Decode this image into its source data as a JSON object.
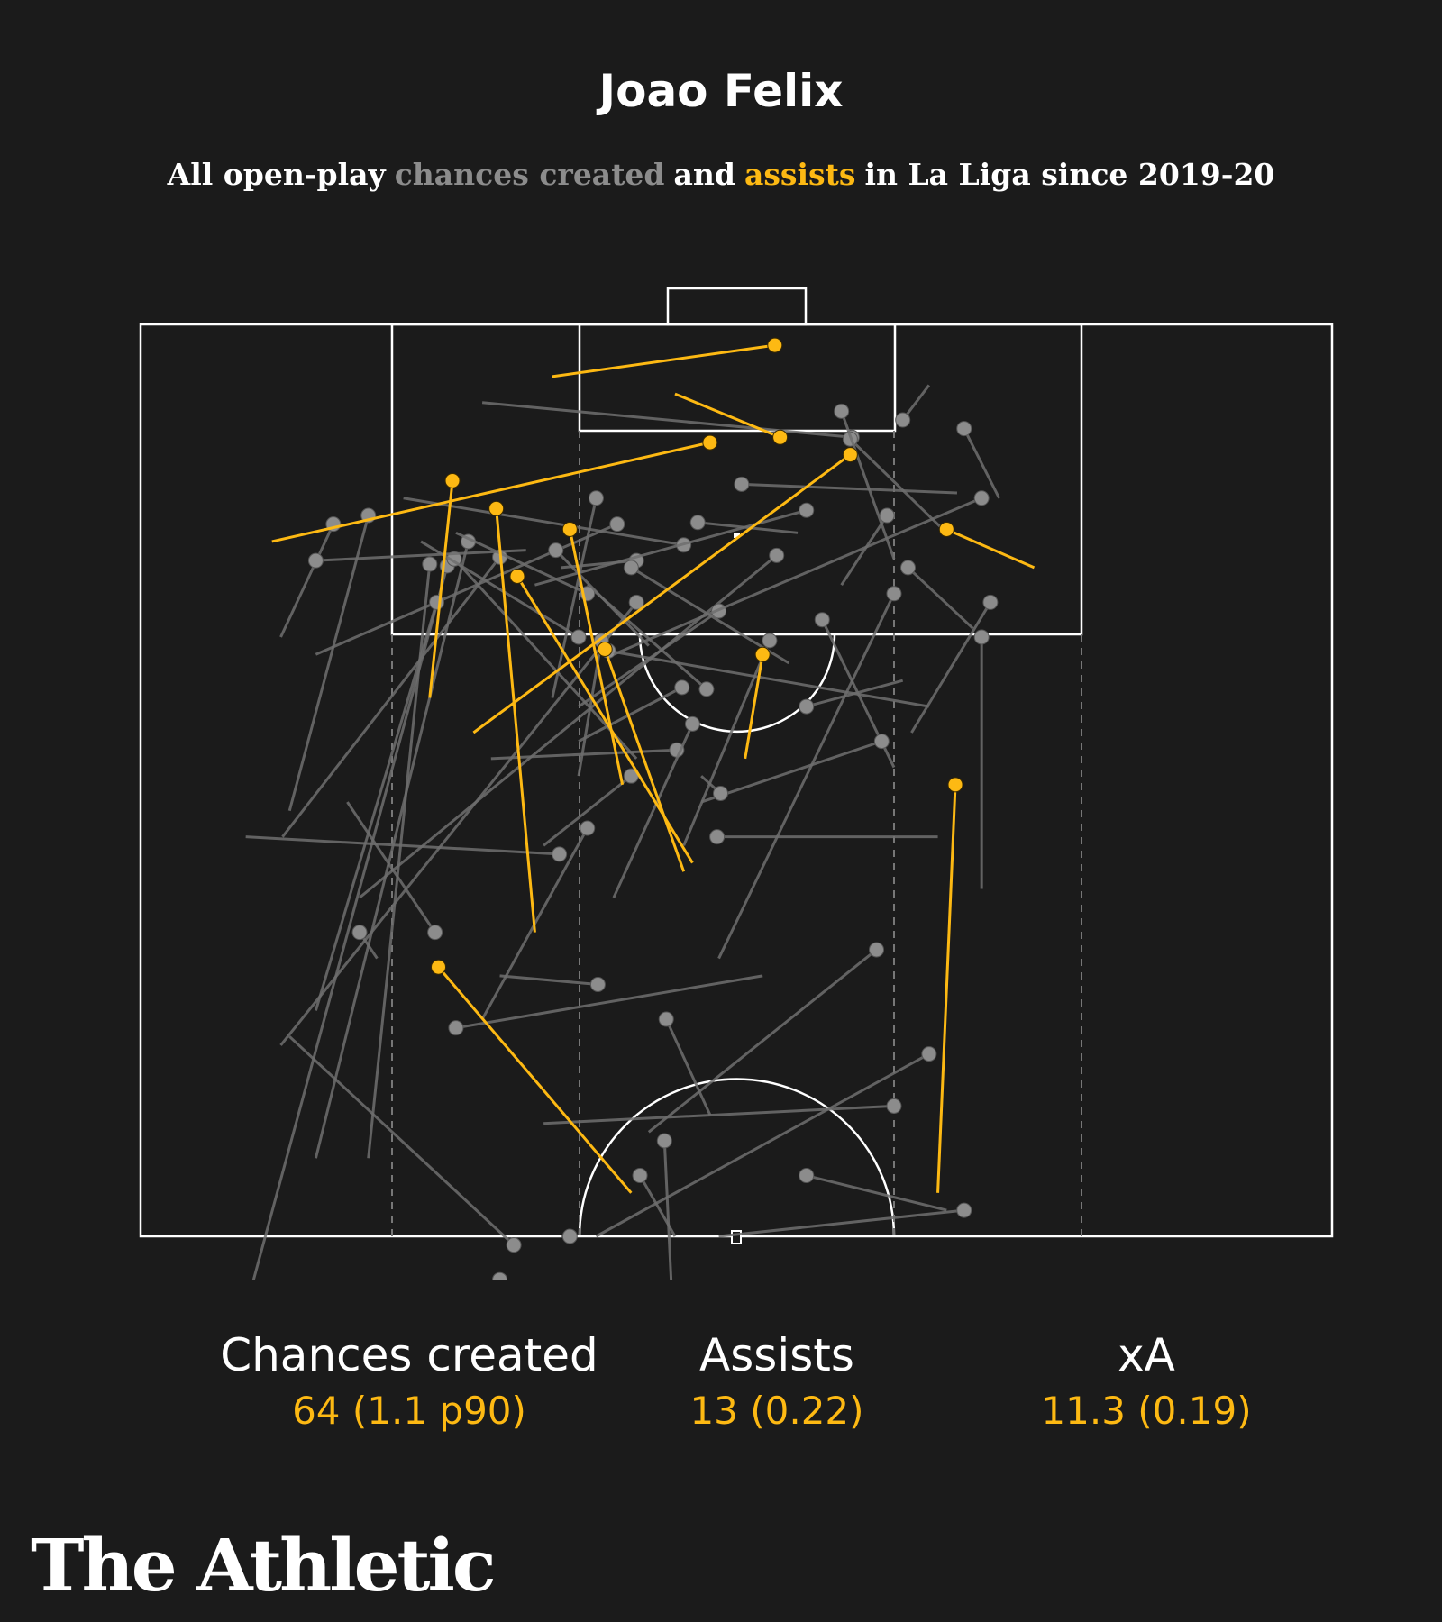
{
  "colors": {
    "background": "#1b1b1b",
    "chance": "#8c8c8c",
    "assist": "#fdb913",
    "pitch_lines": "#ffffff"
  },
  "header": {
    "title": "Joao Felix",
    "subtitle_parts": [
      "All open-play",
      "chances created",
      "and",
      "assists",
      "in La Liga since 2019-20"
    ]
  },
  "stats": [
    {
      "label": "Chances created",
      "value": "64 (1.1 p90)"
    },
    {
      "label": "Assists",
      "value": "13 (0.22)"
    },
    {
      "label": "xA",
      "value": "11.3 (0.19)"
    }
  ],
  "brand": "The Athletic",
  "chart_data": {
    "type": "scatter",
    "description_units": "pitch coordinates in metres: x = across pitch (0-68), y = distance from goal line (0-52.5)",
    "series": [
      {
        "name": "chances created",
        "color": "#8c8c8c",
        "passes": [
          [
            13.0,
            11.0,
            8.5,
            28.0
          ],
          [
            17.5,
            13.9,
            4.7,
            61.5
          ],
          [
            17.9,
            13.5,
            28.3,
            25.0
          ],
          [
            20.5,
            13.4,
            8.1,
            29.5
          ],
          [
            26.0,
            10.0,
            23.5,
            21.5
          ],
          [
            34.3,
            9.2,
            46.6,
            9.7
          ],
          [
            27.2,
            11.5,
            10.0,
            19.0
          ],
          [
            40.6,
            6.5,
            19.5,
            4.5
          ],
          [
            28.3,
            16.0,
            8.0,
            41.5
          ],
          [
            18.7,
            12.5,
            10.0,
            48.0
          ],
          [
            36.3,
            13.3,
            12.5,
            33.0
          ],
          [
            43.0,
            15.5,
            33.0,
            36.5
          ],
          [
            40.5,
            6.6,
            46.0,
            12.0
          ],
          [
            31.0,
            12.7,
            15.0,
            10.0
          ],
          [
            31.8,
            11.4,
            37.5,
            12.0
          ],
          [
            33.0,
            16.5,
            25.0,
            22.0
          ],
          [
            28.3,
            13.6,
            24.0,
            14.0
          ],
          [
            35.9,
            18.2,
            31.0,
            30.0
          ],
          [
            30.9,
            20.9,
            25.0,
            24.0
          ],
          [
            42.6,
            11.0,
            40.0,
            15.0
          ],
          [
            38.0,
            10.7,
            22.5,
            15.0
          ],
          [
            43.8,
            14.0,
            47.5,
            17.5
          ],
          [
            38.9,
            17.0,
            43.0,
            25.5
          ],
          [
            48.0,
            18.0,
            48.0,
            32.5
          ],
          [
            32.3,
            21.0,
            25.5,
            15.0
          ],
          [
            42.3,
            24.0,
            32.0,
            27.5
          ],
          [
            30.6,
            24.5,
            20.0,
            25.0
          ],
          [
            32.9,
            29.5,
            45.5,
            29.5
          ],
          [
            16.9,
            16.0,
            10.0,
            39.5
          ],
          [
            26.1,
            38.0,
            20.5,
            37.5
          ],
          [
            38.0,
            22.0,
            43.5,
            20.5
          ],
          [
            28.0,
            26.0,
            23.0,
            30.0
          ],
          [
            25.0,
            18.0,
            16.0,
            12.5
          ],
          [
            16.5,
            13.8,
            13.0,
            48.0
          ],
          [
            47.0,
            6.0,
            49.0,
            10.0
          ],
          [
            43.5,
            5.5,
            45.0,
            3.5
          ],
          [
            25.5,
            29.0,
            19.5,
            40.0
          ],
          [
            23.9,
            30.5,
            6.0,
            29.5
          ],
          [
            30.0,
            40.0,
            32.5,
            45.5
          ],
          [
            28.0,
            14.0,
            37.0,
            19.5
          ],
          [
            25.5,
            15.5,
            18.0,
            12.0
          ],
          [
            23.7,
            13.0,
            29.0,
            18.5
          ],
          [
            26.7,
            18.8,
            45.0,
            22.0
          ],
          [
            12.5,
            35.0,
            13.5,
            36.5
          ],
          [
            11.0,
            11.5,
            8.0,
            18.0
          ],
          [
            10.0,
            13.6,
            22.0,
            13.0
          ],
          [
            40.0,
            5.0,
            43.0,
            13.5
          ],
          [
            48.5,
            16.0,
            44.0,
            23.5
          ],
          [
            43.0,
            45.0,
            23.0,
            46.0
          ],
          [
            38.0,
            49.0,
            46.0,
            51.0
          ],
          [
            18.0,
            40.5,
            35.5,
            37.5
          ],
          [
            48.0,
            10.0,
            27.0,
            19.0
          ],
          [
            16.8,
            35.0,
            11.8,
            27.5
          ],
          [
            26.3,
            18.2,
            25.0,
            26.0
          ],
          [
            33.1,
            27.0,
            32.0,
            26.0
          ],
          [
            31.5,
            23.0,
            27.0,
            33.0
          ],
          [
            42.0,
            36.0,
            29.0,
            46.5
          ],
          [
            45.0,
            42.0,
            26.0,
            52.5
          ],
          [
            47.0,
            51.0,
            33.0,
            52.5
          ],
          [
            20.5,
            55.0,
            9.5,
            58.0
          ],
          [
            21.3,
            53.0,
            8.5,
            41.0
          ],
          [
            28.5,
            49.0,
            30.5,
            52.5
          ],
          [
            29.9,
            47.0,
            30.3,
            55.5
          ],
          [
            24.5,
            52.5,
            24.0,
            52.5
          ]
        ]
      },
      {
        "name": "assists",
        "color": "#fdb913",
        "passes": [
          [
            36.2,
            1.2,
            23.5,
            3.0
          ],
          [
            36.5,
            6.5,
            30.5,
            4.0
          ],
          [
            32.5,
            6.8,
            7.5,
            12.5
          ],
          [
            40.5,
            7.5,
            19.0,
            23.5
          ],
          [
            17.8,
            9.0,
            16.5,
            21.5
          ],
          [
            20.3,
            10.6,
            22.5,
            35.0
          ],
          [
            21.5,
            14.5,
            31.5,
            31.0
          ],
          [
            24.5,
            11.8,
            27.5,
            26.5
          ],
          [
            26.5,
            18.7,
            31.0,
            31.5
          ],
          [
            35.5,
            19.0,
            34.5,
            25.0
          ],
          [
            46.0,
            11.8,
            51.0,
            14.0
          ],
          [
            46.5,
            26.5,
            45.5,
            50.0
          ],
          [
            17.0,
            37.0,
            28.0,
            50.0
          ]
        ]
      }
    ],
    "legend": "embedded in subtitle"
  }
}
